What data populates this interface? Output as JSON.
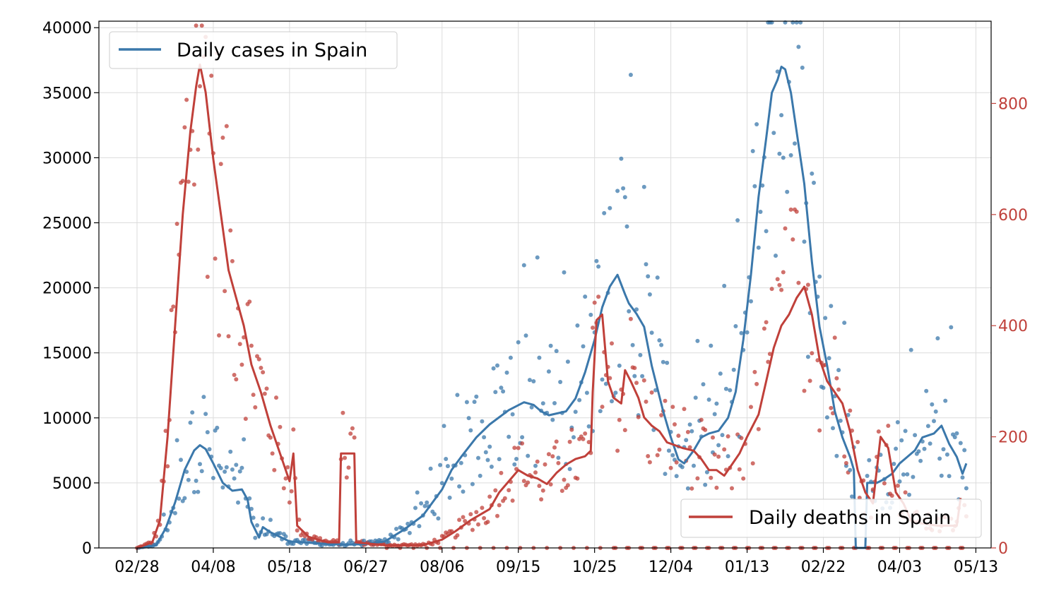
{
  "chart_data": {
    "type": "line",
    "x_axis": {
      "tick_labels": [
        "02/28",
        "04/08",
        "05/18",
        "06/27",
        "08/06",
        "09/15",
        "10/25",
        "12/04",
        "01/13",
        "02/22",
        "04/03",
        "05/13"
      ],
      "tick_days": [
        0,
        40,
        80,
        120,
        160,
        200,
        240,
        280,
        320,
        360,
        400,
        440
      ],
      "xlim": [
        -20,
        448
      ]
    },
    "y_left": {
      "ylim": [
        0,
        40500
      ],
      "ticks": [
        0,
        5000,
        10000,
        15000,
        20000,
        25000,
        30000,
        35000,
        40000
      ]
    },
    "y_right": {
      "ylim": [
        0,
        948
      ],
      "ticks": [
        0,
        200,
        400,
        600,
        800
      ]
    },
    "grid": true,
    "colors": {
      "cases": "#3b78ab",
      "deaths": "#c0403a"
    },
    "series": [
      {
        "name": "Daily cases in Spain",
        "axis": "left",
        "legend_position": "top-left",
        "line": [
          [
            0,
            0
          ],
          [
            10,
            200
          ],
          [
            15,
            1500
          ],
          [
            20,
            3500
          ],
          [
            25,
            6000
          ],
          [
            30,
            7500
          ],
          [
            33,
            7900
          ],
          [
            36,
            7600
          ],
          [
            40,
            6500
          ],
          [
            45,
            5000
          ],
          [
            50,
            4400
          ],
          [
            55,
            4500
          ],
          [
            58,
            3700
          ],
          [
            60,
            2000
          ],
          [
            64,
            800
          ],
          [
            66,
            1600
          ],
          [
            70,
            1200
          ],
          [
            80,
            500
          ],
          [
            90,
            400
          ],
          [
            100,
            300
          ],
          [
            110,
            250
          ],
          [
            120,
            300
          ],
          [
            130,
            500
          ],
          [
            140,
            1400
          ],
          [
            150,
            2500
          ],
          [
            155,
            3500
          ],
          [
            160,
            4500
          ],
          [
            165,
            6000
          ],
          [
            170,
            7000
          ],
          [
            178,
            8500
          ],
          [
            185,
            9500
          ],
          [
            195,
            10600
          ],
          [
            203,
            11200
          ],
          [
            208,
            11000
          ],
          [
            212,
            10500
          ],
          [
            216,
            10200
          ],
          [
            225,
            10500
          ],
          [
            230,
            11500
          ],
          [
            235,
            13500
          ],
          [
            240,
            16000
          ],
          [
            244,
            18500
          ],
          [
            248,
            20100
          ],
          [
            252,
            21000
          ],
          [
            256,
            19500
          ],
          [
            258,
            18800
          ],
          [
            262,
            18000
          ],
          [
            266,
            17000
          ],
          [
            270,
            14000
          ],
          [
            276,
            10500
          ],
          [
            280,
            8500
          ],
          [
            284,
            6800
          ],
          [
            287,
            6500
          ],
          [
            292,
            7500
          ],
          [
            296,
            8500
          ],
          [
            300,
            8800
          ],
          [
            305,
            9000
          ],
          [
            310,
            10000
          ],
          [
            314,
            12000
          ],
          [
            318,
            16000
          ],
          [
            322,
            21000
          ],
          [
            326,
            27000
          ],
          [
            330,
            31500
          ],
          [
            333,
            35000
          ],
          [
            336,
            36000
          ],
          [
            338,
            37000
          ],
          [
            340,
            36800
          ],
          [
            343,
            35000
          ],
          [
            347,
            31000
          ],
          [
            350,
            28000
          ],
          [
            354,
            22000
          ],
          [
            358,
            17000
          ],
          [
            362,
            14000
          ],
          [
            366,
            10500
          ],
          [
            370,
            8500
          ],
          [
            374,
            7000
          ],
          [
            376,
            6000
          ],
          [
            377,
            0
          ],
          [
            382,
            0
          ],
          [
            383,
            5000
          ],
          [
            388,
            5000
          ],
          [
            392,
            5300
          ],
          [
            396,
            5700
          ],
          [
            400,
            6500
          ],
          [
            404,
            7000
          ],
          [
            408,
            7500
          ],
          [
            412,
            8500
          ],
          [
            418,
            8800
          ],
          [
            422,
            9400
          ],
          [
            426,
            8000
          ],
          [
            430,
            7000
          ],
          [
            433,
            5700
          ],
          [
            435,
            6500
          ]
        ]
      },
      {
        "name": "Daily deaths in Spain",
        "axis": "right",
        "legend_position": "bottom-right",
        "line": [
          [
            0,
            0
          ],
          [
            8,
            10
          ],
          [
            12,
            50
          ],
          [
            16,
            200
          ],
          [
            20,
            400
          ],
          [
            24,
            600
          ],
          [
            28,
            750
          ],
          [
            31,
            830
          ],
          [
            33,
            870
          ],
          [
            36,
            820
          ],
          [
            40,
            700
          ],
          [
            44,
            600
          ],
          [
            48,
            500
          ],
          [
            52,
            450
          ],
          [
            56,
            400
          ],
          [
            60,
            330
          ],
          [
            65,
            280
          ],
          [
            70,
            220
          ],
          [
            75,
            170
          ],
          [
            80,
            120
          ],
          [
            82,
            170
          ],
          [
            84,
            40
          ],
          [
            90,
            20
          ],
          [
            95,
            15
          ],
          [
            100,
            10
          ],
          [
            106,
            10
          ],
          [
            107,
            170
          ],
          [
            114,
            170
          ],
          [
            115,
            10
          ],
          [
            130,
            5
          ],
          [
            140,
            5
          ],
          [
            150,
            5
          ],
          [
            160,
            15
          ],
          [
            167,
            30
          ],
          [
            175,
            50
          ],
          [
            185,
            70
          ],
          [
            190,
            100
          ],
          [
            195,
            120
          ],
          [
            200,
            140
          ],
          [
            205,
            130
          ],
          [
            210,
            125
          ],
          [
            215,
            115
          ],
          [
            220,
            135
          ],
          [
            225,
            150
          ],
          [
            230,
            160
          ],
          [
            235,
            165
          ],
          [
            238,
            175
          ],
          [
            239,
            280
          ],
          [
            241,
            410
          ],
          [
            244,
            420
          ],
          [
            247,
            300
          ],
          [
            250,
            270
          ],
          [
            254,
            260
          ],
          [
            256,
            320
          ],
          [
            259,
            300
          ],
          [
            263,
            270
          ],
          [
            266,
            235
          ],
          [
            270,
            220
          ],
          [
            274,
            210
          ],
          [
            278,
            190
          ],
          [
            282,
            185
          ],
          [
            286,
            180
          ],
          [
            292,
            175
          ],
          [
            296,
            160
          ],
          [
            300,
            140
          ],
          [
            304,
            140
          ],
          [
            308,
            130
          ],
          [
            312,
            150
          ],
          [
            316,
            170
          ],
          [
            320,
            200
          ],
          [
            326,
            240
          ],
          [
            330,
            300
          ],
          [
            334,
            360
          ],
          [
            338,
            400
          ],
          [
            342,
            420
          ],
          [
            346,
            450
          ],
          [
            350,
            470
          ],
          [
            354,
            420
          ],
          [
            358,
            340
          ],
          [
            362,
            300
          ],
          [
            366,
            280
          ],
          [
            370,
            260
          ],
          [
            374,
            210
          ],
          [
            378,
            140
          ],
          [
            382,
            100
          ],
          [
            386,
            80
          ],
          [
            390,
            200
          ],
          [
            394,
            180
          ],
          [
            398,
            100
          ],
          [
            402,
            80
          ],
          [
            406,
            50
          ],
          [
            410,
            45
          ],
          [
            420,
            40
          ],
          [
            430,
            40
          ],
          [
            432,
            90
          ]
        ]
      }
    ]
  }
}
